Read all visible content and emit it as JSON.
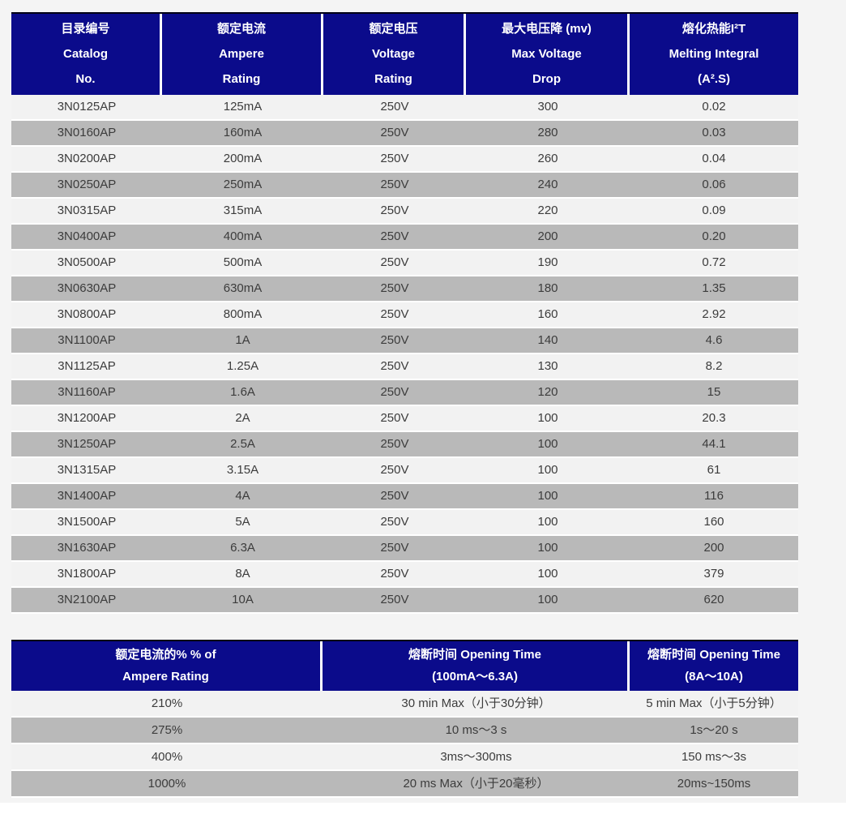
{
  "colors": {
    "page_bg": "#f4f4f4",
    "header_bg": "#0b0b8b",
    "header_text": "#ffffff",
    "row_light_bg": "#f2f2f2",
    "row_gray_bg": "#b9b9b9",
    "body_text": "#3c3c3c"
  },
  "main_table": {
    "columns": [
      {
        "key": "catalog-no",
        "lines": [
          "目录编号",
          "Catalog",
          "No."
        ]
      },
      {
        "key": "ampere-rating",
        "lines": [
          "额定电流",
          "Ampere",
          "Rating"
        ]
      },
      {
        "key": "voltage-rating",
        "lines": [
          "额定电压",
          "Voltage",
          "Rating"
        ]
      },
      {
        "key": "max-voltage-drop",
        "lines": [
          "最大电压降 (mv)",
          "Max Voltage",
          "Drop"
        ]
      },
      {
        "key": "melting-integral",
        "lines": [
          "熔化热能I²T",
          "Melting Integral",
          "(A².S)"
        ]
      }
    ],
    "rows": [
      [
        "3N0125AP",
        "125mA",
        "250V",
        "300",
        "0.02"
      ],
      [
        "3N0160AP",
        "160mA",
        "250V",
        "280",
        "0.03"
      ],
      [
        "3N0200AP",
        "200mA",
        "250V",
        "260",
        "0.04"
      ],
      [
        "3N0250AP",
        "250mA",
        "250V",
        "240",
        "0.06"
      ],
      [
        "3N0315AP",
        "315mA",
        "250V",
        "220",
        "0.09"
      ],
      [
        "3N0400AP",
        "400mA",
        "250V",
        "200",
        "0.20"
      ],
      [
        "3N0500AP",
        "500mA",
        "250V",
        "190",
        "0.72"
      ],
      [
        "3N0630AP",
        "630mA",
        "250V",
        "180",
        "1.35"
      ],
      [
        "3N0800AP",
        "800mA",
        "250V",
        "160",
        "2.92"
      ],
      [
        "3N1100AP",
        "1A",
        "250V",
        "140",
        "4.6"
      ],
      [
        "3N1125AP",
        "1.25A",
        "250V",
        "130",
        "8.2"
      ],
      [
        "3N1160AP",
        "1.6A",
        "250V",
        "120",
        "15"
      ],
      [
        "3N1200AP",
        "2A",
        "250V",
        "100",
        "20.3"
      ],
      [
        "3N1250AP",
        "2.5A",
        "250V",
        "100",
        "44.1"
      ],
      [
        "3N1315AP",
        "3.15A",
        "250V",
        "100",
        "61"
      ],
      [
        "3N1400AP",
        "4A",
        "250V",
        "100",
        "116"
      ],
      [
        "3N1500AP",
        "5A",
        "250V",
        "100",
        "160"
      ],
      [
        "3N1630AP",
        "6.3A",
        "250V",
        "100",
        "200"
      ],
      [
        "3N1800AP",
        "8A",
        "250V",
        "100",
        "379"
      ],
      [
        "3N2100AP",
        "10A",
        "250V",
        "100",
        "620"
      ]
    ]
  },
  "opening_time_table": {
    "columns": [
      {
        "key": "percent-of-ampere-rating",
        "lines": [
          "额定电流的% % of",
          "Ampere Rating"
        ]
      },
      {
        "key": "opening-time-100ma-6-3a",
        "lines": [
          "熔断时间 Opening Time",
          "(100mA～6.3A)"
        ]
      },
      {
        "key": "opening-time-8a-10a",
        "lines": [
          "熔断时间 Opening Time",
          "(8A～10A)"
        ]
      }
    ],
    "rows": [
      [
        "210%",
        "30 min Max（小于30分钟）",
        "5 min Max（小于5分钟）"
      ],
      [
        "275%",
        "10 ms～3 s",
        "1s～20 s"
      ],
      [
        "400%",
        "3ms～300ms",
        "150 ms～3s"
      ],
      [
        "1000%",
        "20 ms Max（小于20毫秒）",
        "20ms~150ms"
      ]
    ]
  }
}
